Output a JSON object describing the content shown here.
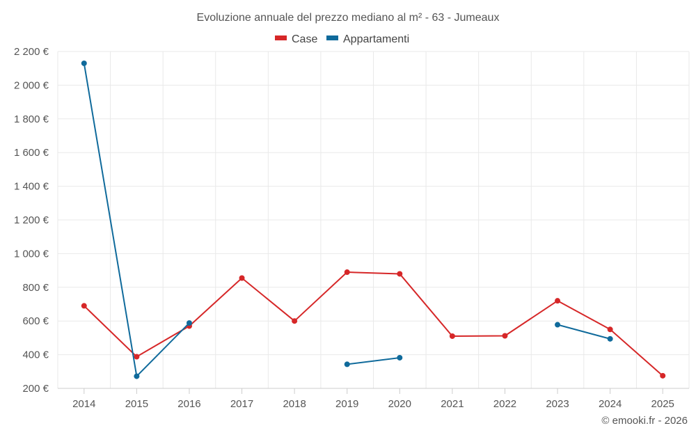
{
  "chart_data": {
    "type": "line",
    "title": "Evoluzione annuale del prezzo mediano al m² - 63 - Jumeaux",
    "xlabel": "",
    "ylabel": "",
    "categories": [
      "2014",
      "2015",
      "2016",
      "2017",
      "2018",
      "2019",
      "2020",
      "2021",
      "2022",
      "2023",
      "2024",
      "2025"
    ],
    "ylim": [
      200,
      2200
    ],
    "yticks": [
      200,
      400,
      600,
      800,
      1000,
      1200,
      1400,
      1600,
      1800,
      2000,
      2200
    ],
    "ytick_labels": [
      "200 €",
      "400 €",
      "600 €",
      "800 €",
      "1 000 €",
      "1 200 €",
      "1 400 €",
      "1 600 €",
      "1 800 €",
      "2 000 €",
      "2 200 €"
    ],
    "grid": true,
    "legend_position": "top-center",
    "series": [
      {
        "name": "Case",
        "color": "#d62728",
        "values": [
          690,
          388,
          570,
          855,
          600,
          890,
          880,
          510,
          512,
          720,
          550,
          275
        ]
      },
      {
        "name": "Appartamenti",
        "color": "#0f6a9b",
        "values": [
          2130,
          272,
          588,
          null,
          null,
          343,
          382,
          null,
          null,
          578,
          494,
          null
        ]
      }
    ]
  },
  "credit": "© emooki.fr - 2026"
}
